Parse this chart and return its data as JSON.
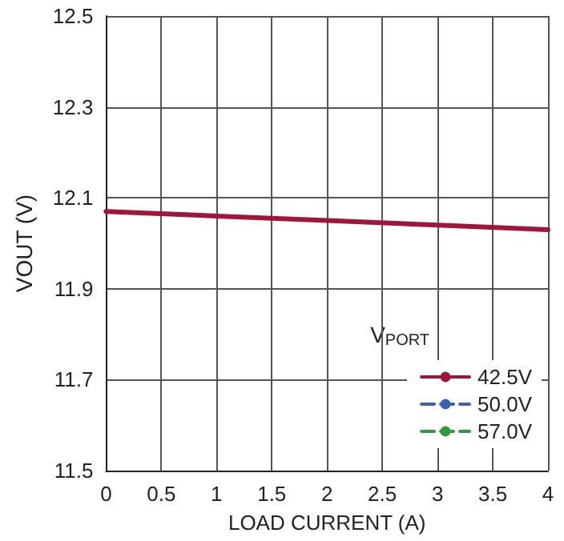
{
  "chart_data": {
    "type": "line",
    "xlabel": "LOAD CURRENT (A)",
    "ylabel": "VOUT (V)",
    "legend_title": "V$_{PORT}$",
    "x": [
      0,
      1,
      2,
      3,
      4
    ],
    "series": [
      {
        "name": "42.5V",
        "color": "#a0163a",
        "values": [
          12.07,
          12.06,
          12.05,
          12.04,
          12.03
        ],
        "line_style": "solid"
      },
      {
        "name": "50.0V",
        "color": "#3a5fb5",
        "values": [
          null,
          null,
          null,
          null,
          null
        ],
        "line_style": "dashed"
      },
      {
        "name": "57.0V",
        "color": "#2e9a3e",
        "values": [
          null,
          null,
          null,
          null,
          null
        ],
        "line_style": "dashed"
      }
    ],
    "xlim": [
      0,
      4
    ],
    "xticks": [
      0,
      0.5,
      1,
      1.5,
      2,
      2.5,
      3,
      3.5,
      4
    ],
    "ylim": [
      11.5,
      12.5
    ],
    "yticks": [
      11.5,
      11.7,
      11.9,
      12.1,
      12.3,
      12.5
    ],
    "grid": true,
    "legend": "bottom right",
    "marker": "none"
  }
}
